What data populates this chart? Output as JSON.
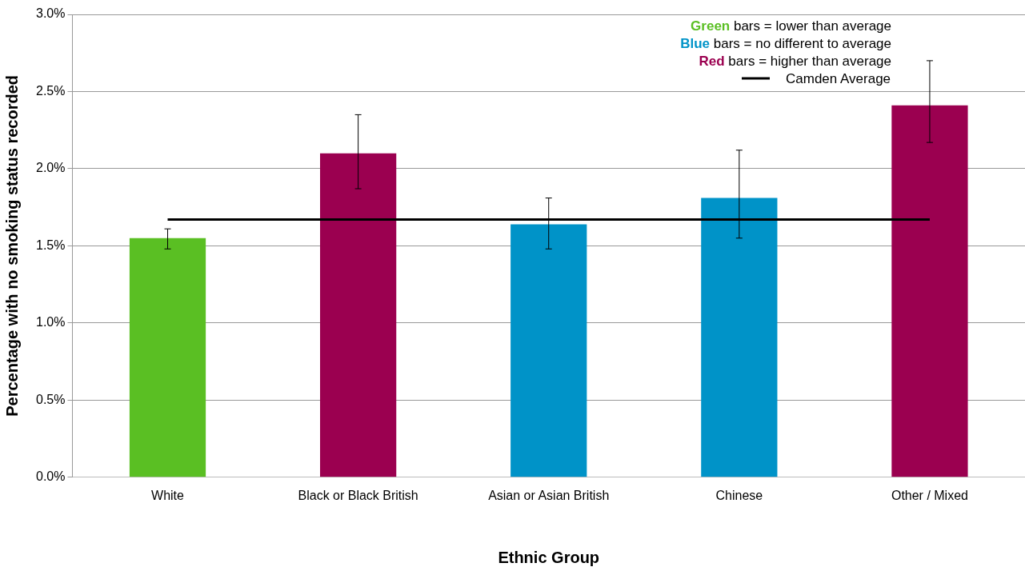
{
  "chart_data": {
    "type": "bar",
    "xlabel": "Ethnic Group",
    "ylabel": "Percentage with no smoking status recorded",
    "categories": [
      "White",
      "Black or Black British",
      "Asian or Asian British",
      "Chinese",
      "Other / Mixed"
    ],
    "series": [
      {
        "name": "Green bars = lower than average",
        "color": "#5abf23",
        "values": [
          1.55,
          null,
          null,
          null,
          null
        ],
        "errors": [
          [
            1.48,
            1.61
          ],
          null,
          null,
          null,
          null
        ]
      },
      {
        "name": "Blue bars = no different to average",
        "color": "#0093c8",
        "values": [
          null,
          null,
          1.64,
          1.81,
          null
        ],
        "errors": [
          null,
          null,
          [
            1.48,
            1.81
          ],
          [
            1.55,
            2.12
          ],
          null
        ]
      },
      {
        "name": "Red bars = higher than average",
        "color": "#9b0050",
        "values": [
          null,
          2.1,
          null,
          null,
          2.41
        ],
        "errors": [
          null,
          [
            1.87,
            2.35
          ],
          null,
          null,
          [
            2.17,
            2.7
          ]
        ]
      }
    ],
    "ylim": [
      0,
      3
    ],
    "yticks": [
      {
        "value": 0,
        "label": "0.0%"
      },
      {
        "value": 0.5,
        "label": "0.5%"
      },
      {
        "value": 1,
        "label": "1.0%"
      },
      {
        "value": 1.5,
        "label": "1.5%"
      },
      {
        "value": 2,
        "label": "2.0%"
      },
      {
        "value": 2.5,
        "label": "2.5%"
      },
      {
        "value": 3,
        "label": "3.0%"
      }
    ],
    "grid": "y",
    "legend": "top right",
    "ref_lines": [
      {
        "axis": "y",
        "value": 1.67,
        "label": "Camden Average",
        "color": "#000000"
      }
    ]
  }
}
